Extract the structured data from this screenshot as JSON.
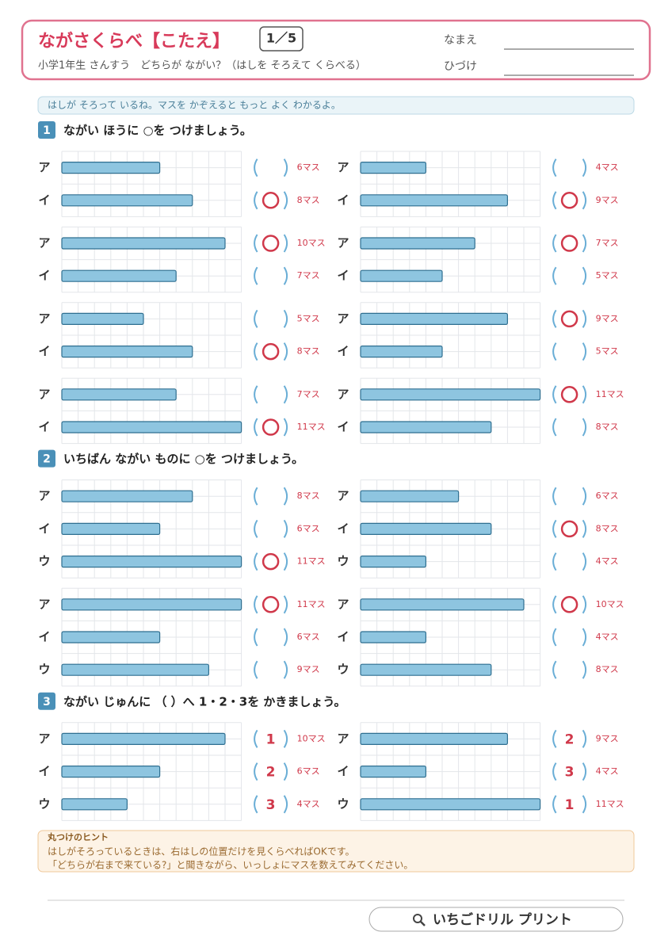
{
  "header": {
    "title": "ながさくらべ【こたえ】",
    "page": "1／5",
    "subtitle": "小学1年生 さんすう　どちらが ながい？（はしを そろえて くらべる）",
    "name_label": "なまえ",
    "date_label": "ひづけ"
  },
  "intro": "はしが そろって いるね。マスを かぞえると もっと よく わかるよ。",
  "sections": [
    {
      "number": "1",
      "instruction": "ながい ほうに ○を つけましょう。",
      "problems": [
        {
          "rows": [
            {
              "kana": "ア",
              "length": 6,
              "label": "6マス"
            },
            {
              "kana": "イ",
              "length": 8,
              "label": "8マス",
              "circled": true
            }
          ]
        },
        {
          "rows": [
            {
              "kana": "ア",
              "length": 4,
              "label": "4マス"
            },
            {
              "kana": "イ",
              "length": 9,
              "label": "9マス",
              "circled": true
            }
          ]
        },
        {
          "rows": [
            {
              "kana": "ア",
              "length": 10,
              "label": "10マス",
              "circled": true
            },
            {
              "kana": "イ",
              "length": 7,
              "label": "7マス"
            }
          ]
        },
        {
          "rows": [
            {
              "kana": "ア",
              "length": 7,
              "label": "7マス",
              "circled": true
            },
            {
              "kana": "イ",
              "length": 5,
              "label": "5マス"
            }
          ]
        },
        {
          "rows": [
            {
              "kana": "ア",
              "length": 5,
              "label": "5マス"
            },
            {
              "kana": "イ",
              "length": 8,
              "label": "8マス",
              "circled": true
            }
          ]
        },
        {
          "rows": [
            {
              "kana": "ア",
              "length": 9,
              "label": "9マス",
              "circled": true
            },
            {
              "kana": "イ",
              "length": 5,
              "label": "5マス"
            }
          ]
        },
        {
          "rows": [
            {
              "kana": "ア",
              "length": 7,
              "label": "7マス"
            },
            {
              "kana": "イ",
              "length": 11,
              "label": "11マス",
              "circled": true
            }
          ]
        },
        {
          "rows": [
            {
              "kana": "ア",
              "length": 11,
              "label": "11マス",
              "circled": true
            },
            {
              "kana": "イ",
              "length": 8,
              "label": "8マス"
            }
          ]
        }
      ]
    },
    {
      "number": "2",
      "instruction": "いちばん ながい ものに ○を つけましょう。",
      "problems": [
        {
          "rows": [
            {
              "kana": "ア",
              "length": 8,
              "label": "8マス"
            },
            {
              "kana": "イ",
              "length": 6,
              "label": "6マス"
            },
            {
              "kana": "ウ",
              "length": 11,
              "label": "11マス",
              "circled": true
            }
          ]
        },
        {
          "rows": [
            {
              "kana": "ア",
              "length": 6,
              "label": "6マス"
            },
            {
              "kana": "イ",
              "length": 8,
              "label": "8マス",
              "circled": true
            },
            {
              "kana": "ウ",
              "length": 4,
              "label": "4マス"
            }
          ]
        },
        {
          "rows": [
            {
              "kana": "ア",
              "length": 11,
              "label": "11マス",
              "circled": true
            },
            {
              "kana": "イ",
              "length": 6,
              "label": "6マス"
            },
            {
              "kana": "ウ",
              "length": 9,
              "label": "9マス"
            }
          ]
        },
        {
          "rows": [
            {
              "kana": "ア",
              "length": 10,
              "label": "10マス",
              "circled": true
            },
            {
              "kana": "イ",
              "length": 4,
              "label": "4マス"
            },
            {
              "kana": "ウ",
              "length": 8,
              "label": "8マス"
            }
          ]
        }
      ]
    },
    {
      "number": "3",
      "instruction": "ながい じゅんに （ ）へ 1・2・3を かきましょう。",
      "problems": [
        {
          "rows": [
            {
              "kana": "ア",
              "length": 10,
              "label": "10マス",
              "answer": "1"
            },
            {
              "kana": "イ",
              "length": 6,
              "label": "6マス",
              "answer": "2"
            },
            {
              "kana": "ウ",
              "length": 4,
              "label": "4マス",
              "answer": "3"
            }
          ]
        },
        {
          "rows": [
            {
              "kana": "ア",
              "length": 9,
              "label": "9マス",
              "answer": "2"
            },
            {
              "kana": "イ",
              "length": 4,
              "label": "4マス",
              "answer": "3"
            },
            {
              "kana": "ウ",
              "length": 11,
              "label": "11マス",
              "answer": "1"
            }
          ]
        }
      ]
    }
  ],
  "hint": {
    "title": "丸つけのヒント",
    "lines": [
      "はしがそろっているときは、右はしの位置だけを見くらべればOKです。",
      "「どちらが右まで来ている?」と聞きながら、いっしょにマスを数えてみてください。"
    ]
  },
  "footer": {
    "brand": "いちごドリル プリント"
  }
}
